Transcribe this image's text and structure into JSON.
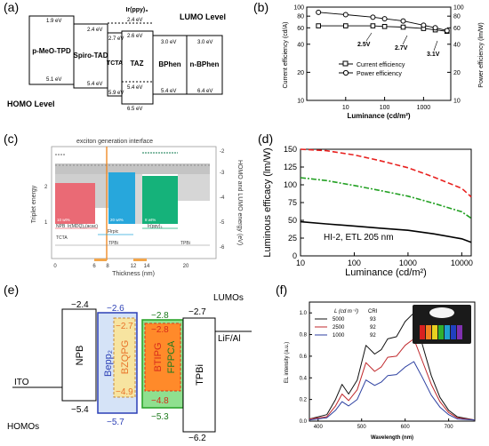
{
  "panels": {
    "a": {
      "label": "(a)",
      "materials": [
        "p-MeO-TPD",
        "Spiro-TAD",
        "TCTA",
        "Ir(ppy)₃",
        "TAZ",
        "BPhen",
        "n-BPhen"
      ],
      "energies": [
        "1.9 eV",
        "5.1 eV",
        "2.4 eV",
        "5.4 eV",
        "2.7 eV",
        "5.9 eV",
        "2.4 eV",
        "2.6 eV",
        "5.4 eV",
        "6.5 eV",
        "3.0 eV",
        "5.4 eV",
        "3.0 eV",
        "6.4 eV"
      ],
      "lumo_label": "LUMO Level",
      "homo_label": "HOMO Level"
    },
    "b": {
      "label": "(b)",
      "ylabel": "Current efficiency (cd/A)",
      "ylabel2": "Power efficiency (lm/W)",
      "xlabel": "Luminance (cd/m²)",
      "yticks": [
        "100",
        "80",
        "60",
        "40",
        "20",
        "10"
      ],
      "yticks2": [
        "100",
        "80",
        "60",
        "40",
        "20",
        "10"
      ],
      "xticks": [
        "10",
        "100",
        "1000"
      ],
      "legend": [
        "Current efficiency",
        "Power efficiency"
      ],
      "annotations": [
        "2.5V",
        "2.7V",
        "3.1V"
      ]
    },
    "c": {
      "label": "(c)",
      "title": "exciton generation interface",
      "ylabel": "Triplet energy",
      "ylabel2": "HOMO and LUMO energy (eV)",
      "xlabel": "Thickness (nm)",
      "xticks": [
        "0",
        "6",
        "8",
        "12",
        "14",
        "20"
      ],
      "yticks2": [
        "-2",
        "-3",
        "-4",
        "-5",
        "-6"
      ],
      "yticks": [
        "2",
        "1"
      ],
      "layer_labels": [
        "NPB",
        "Ir(MDQ)₂(acac)",
        "TCTA",
        "Flrpic",
        "TPBi",
        "TPBi",
        "Ir(ppy)₃"
      ],
      "percent_labels": [
        "10 wt%",
        "20 wt%",
        "8 wt%"
      ]
    },
    "d": {
      "label": "(d)",
      "ylabel": "Luminous efficacy (lm/W)",
      "xlabel": "Luminance (cd/m²)",
      "yticks": [
        "150",
        "125",
        "100",
        "75",
        "50",
        "25",
        "0"
      ],
      "xticks": [
        "10",
        "100",
        "1000",
        "10000"
      ],
      "annotation": "HI-2, ETL 205 nm"
    },
    "e": {
      "label": "(e)",
      "lumos": "LUMOs",
      "homos": "HOMOs",
      "ito": "ITO",
      "lif": "LiF/Al",
      "materials": [
        "NPB",
        "Bepp₂",
        "BZQPG",
        "BTIPG",
        "FPPCA",
        "TPBi"
      ],
      "values": [
        "−2.4",
        "−5.4",
        "−2.6",
        "−5.7",
        "−2.7",
        "−4.9",
        "−2.8",
        "−5.3",
        "−2.8",
        "−4.8",
        "−2.7",
        "−6.2"
      ]
    },
    "f": {
      "label": "(f)",
      "ylabel": "EL intensity (a.u.)",
      "xlabel": "Wavelength (nm)",
      "yticks": [
        "1.0",
        "0.8",
        "0.6",
        "0.4",
        "0.2",
        "0.0"
      ],
      "xticks": [
        "400",
        "500",
        "600",
        "700"
      ],
      "legend_header": [
        "L (cd m⁻²)",
        "CRI"
      ],
      "legend_rows": [
        [
          "5000",
          "93"
        ],
        [
          "2500",
          "92"
        ],
        [
          "1000",
          "92"
        ]
      ]
    }
  },
  "chart_data": [
    {
      "type": "line",
      "panel": "b",
      "x_scale": "log",
      "y_scale": "log",
      "xlim": [
        1,
        5000
      ],
      "ylim": [
        10,
        100
      ],
      "series": [
        {
          "name": "Current efficiency",
          "x": [
            2,
            10,
            50,
            100,
            300,
            1000,
            2000,
            4000
          ],
          "y": [
            63,
            63,
            63,
            62,
            61,
            59,
            57,
            55
          ]
        },
        {
          "name": "Power efficiency",
          "x": [
            2,
            10,
            50,
            100,
            300,
            1000,
            2000,
            4000
          ],
          "y": [
            88,
            83,
            78,
            75,
            71,
            64,
            60,
            56
          ]
        }
      ]
    },
    {
      "type": "line",
      "panel": "d",
      "x_scale": "log",
      "xlim": [
        10,
        15000
      ],
      "ylim": [
        0,
        150
      ],
      "series": [
        {
          "x": [
            10,
            30,
            100,
            300,
            1000,
            3000,
            10000,
            15000
          ],
          "y": [
            150,
            148,
            142,
            134,
            124,
            111,
            95,
            83
          ],
          "color": "#e8211f"
        },
        {
          "x": [
            10,
            30,
            100,
            300,
            1000,
            3000,
            10000,
            15000
          ],
          "y": [
            110,
            106,
            99,
            92,
            84,
            74,
            62,
            53
          ],
          "color": "#22a022"
        },
        {
          "x": [
            10,
            30,
            100,
            300,
            1000,
            3000,
            10000,
            15000
          ],
          "y": [
            48,
            45,
            42,
            39,
            36,
            31,
            24,
            19
          ],
          "color": "#000000"
        }
      ]
    },
    {
      "type": "line",
      "panel": "f",
      "xlim": [
        380,
        760
      ],
      "ylim": [
        0,
        1.1
      ],
      "series": [
        {
          "name": "5000",
          "color": "#111111",
          "x": [
            380,
            420,
            440,
            455,
            470,
            490,
            510,
            530,
            545,
            560,
            580,
            600,
            620,
            640,
            660,
            680,
            700,
            720,
            760
          ],
          "y": [
            0.02,
            0.06,
            0.2,
            0.34,
            0.25,
            0.38,
            0.7,
            0.62,
            0.66,
            0.76,
            0.78,
            0.92,
            1.0,
            0.7,
            0.42,
            0.22,
            0.1,
            0.04,
            0.01
          ]
        },
        {
          "name": "2500",
          "color": "#c0282c",
          "x": [
            380,
            420,
            440,
            455,
            470,
            490,
            510,
            530,
            545,
            560,
            580,
            600,
            620,
            640,
            660,
            680,
            700,
            720,
            760
          ],
          "y": [
            0.02,
            0.04,
            0.14,
            0.25,
            0.19,
            0.29,
            0.54,
            0.46,
            0.5,
            0.59,
            0.6,
            0.7,
            0.76,
            0.55,
            0.34,
            0.18,
            0.08,
            0.03,
            0.01
          ]
        },
        {
          "name": "1000",
          "color": "#2c3fa0",
          "x": [
            380,
            420,
            440,
            455,
            470,
            490,
            510,
            530,
            545,
            560,
            580,
            600,
            620,
            640,
            660,
            680,
            700,
            720,
            760
          ],
          "y": [
            0.01,
            0.03,
            0.1,
            0.18,
            0.14,
            0.2,
            0.38,
            0.33,
            0.36,
            0.42,
            0.43,
            0.5,
            0.55,
            0.4,
            0.24,
            0.13,
            0.06,
            0.02,
            0.01
          ]
        }
      ]
    }
  ]
}
